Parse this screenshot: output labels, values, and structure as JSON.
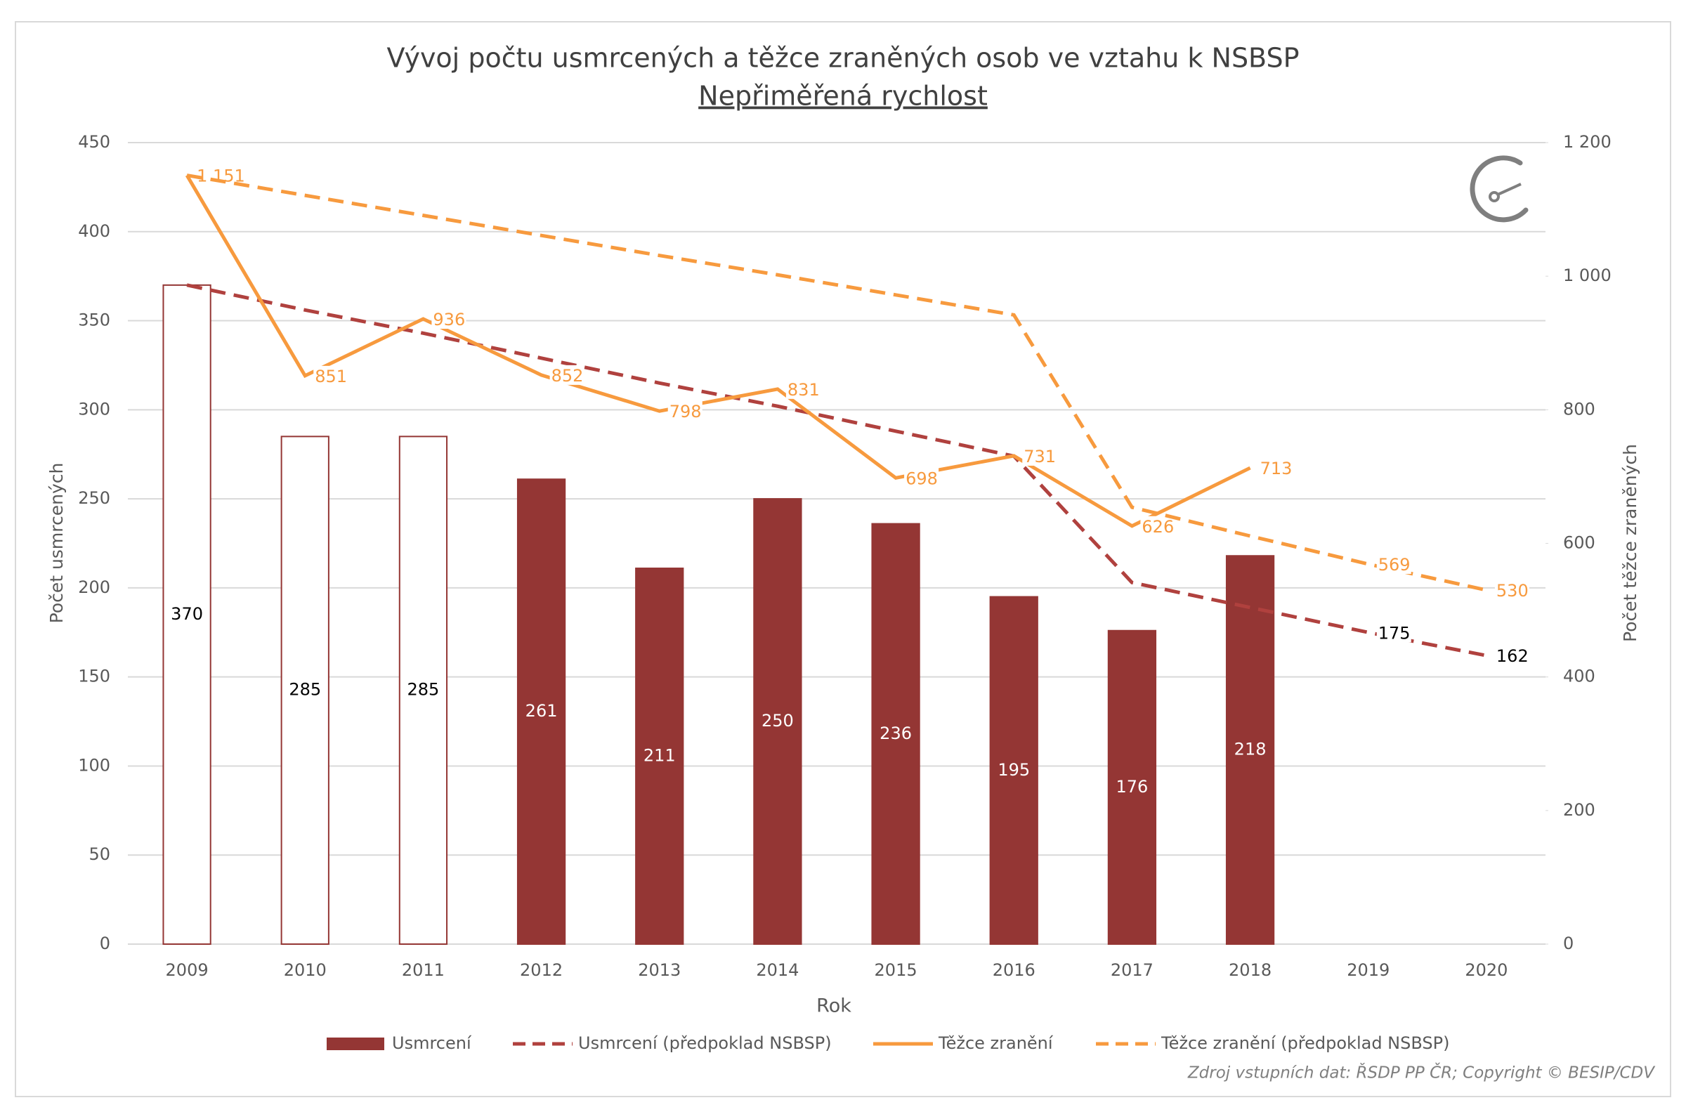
{
  "chart_data": {
    "type": "bar-line",
    "title": "Vývoj počtu usmrcených a těžce zraněných osob ve vztahu k NSBSP",
    "subtitle": "Nepřiměřená rychlost",
    "x_label": "Rok",
    "y_label": "Počet usmrcených",
    "y2_label": "Počet těžce zraněných",
    "source": "Zdroj vstupních dat: ŘSDP PP ČR; Copyright © BESIP/CDV",
    "categories": [
      "2009",
      "2010",
      "2011",
      "2012",
      "2013",
      "2014",
      "2015",
      "2016",
      "2017",
      "2018",
      "2019",
      "2020"
    ],
    "ylim": [
      0,
      450
    ],
    "yticks": [
      0,
      50,
      100,
      150,
      200,
      250,
      300,
      350,
      400,
      450
    ],
    "y2lim": [
      0,
      1200
    ],
    "y2ticks": [
      0,
      200,
      400,
      600,
      800,
      {
        "value": 1000,
        "label": "1 000"
      },
      {
        "value": 1200,
        "label": "1 200"
      }
    ],
    "grid": true,
    "legend": "bottom",
    "series": [
      {
        "name": "Usmrcení",
        "type": "bar",
        "color": "#943634",
        "bar_fills": [
          "#ffffff",
          "#ffffff",
          "#ffffff",
          "#943634",
          "#943634",
          "#943634",
          "#943634",
          "#943634",
          "#943634",
          "#943634",
          "#943634",
          "#943634"
        ],
        "label_colors": [
          "#000000",
          "#000000",
          "#000000",
          "#ffffff",
          "#ffffff",
          "#ffffff",
          "#ffffff",
          "#ffffff",
          "#ffffff",
          "#ffffff",
          "#ffffff",
          "#ffffff"
        ],
        "values": [
          370,
          285,
          285,
          261,
          211,
          250,
          236,
          195,
          176,
          218,
          null,
          null
        ]
      },
      {
        "name": "Usmrcení (předpoklad NSBSP)",
        "type": "line",
        "dashed": true,
        "color": "#b0413e",
        "label_color": "#000000",
        "values": [
          370,
          356,
          343,
          329,
          315,
          302,
          288,
          274,
          203,
          189,
          175,
          162
        ],
        "value_labels": [
          null,
          null,
          null,
          null,
          null,
          null,
          null,
          null,
          null,
          null,
          "175",
          "162"
        ]
      },
      {
        "name": "Těžce zranění",
        "type": "line",
        "dashed": false,
        "axis": "y2",
        "color": "#f79a3e",
        "label_color": "#f79a3e",
        "values": [
          1151,
          851,
          936,
          852,
          798,
          831,
          698,
          731,
          626,
          713,
          null,
          null
        ],
        "value_labels": [
          "1 151",
          "851",
          "936",
          "852",
          "798",
          "831",
          "698",
          "731",
          "626",
          "713",
          null,
          null
        ]
      },
      {
        "name": "Těžce zranění (předpoklad NSBSP)",
        "type": "line",
        "dashed": true,
        "axis": "y2",
        "color": "#f79a3e",
        "label_color": "#f79a3e",
        "values": [
          1151,
          1121,
          1091,
          1061,
          1031,
          1002,
          972,
          942,
          654,
          611,
          569,
          530
        ],
        "value_labels": [
          null,
          null,
          null,
          null,
          null,
          null,
          null,
          null,
          null,
          null,
          "569",
          "530"
        ]
      }
    ]
  }
}
